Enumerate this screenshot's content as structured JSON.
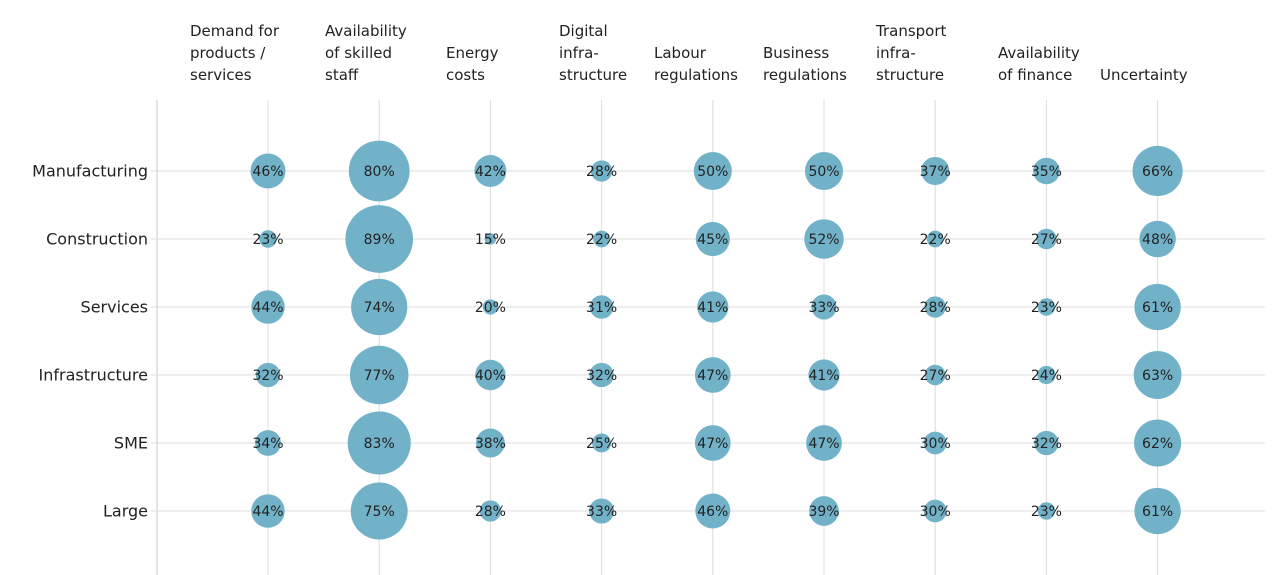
{
  "chart_data": {
    "type": "bubble",
    "categories": [
      "Demand for\nproducts /\nservices",
      "Availability\nof skilled\nstaff",
      "Energy\ncosts",
      "Digital\ninfra-\nstructure",
      "Labour\nregulations",
      "Business\nregulations",
      "Transport\ninfra-\nstructure",
      "Availability\nof finance",
      "Uncertainty"
    ],
    "color": "#72b2c9",
    "series": [
      {
        "name": "Manufacturing",
        "values": [
          46,
          80,
          42,
          28,
          50,
          50,
          37,
          35,
          66
        ],
        "value_labels": [
          "46%",
          "80%",
          "42%",
          "28%",
          "50%",
          "50%",
          "37%",
          "35%",
          "66%"
        ]
      },
      {
        "name": "Construction",
        "values": [
          23,
          89,
          15,
          22,
          45,
          52,
          22,
          27,
          48
        ],
        "value_labels": [
          "23%",
          "89%",
          "15%",
          "22%",
          "45%",
          "52%",
          "22%",
          "27%",
          "48%"
        ]
      },
      {
        "name": "Services",
        "values": [
          44,
          74,
          20,
          31,
          41,
          33,
          28,
          23,
          61
        ],
        "value_labels": [
          "44%",
          "74%",
          "20%",
          "31%",
          "41%",
          "33%",
          "28%",
          "23%",
          "61%"
        ]
      },
      {
        "name": "Infrastructure",
        "values": [
          32,
          77,
          40,
          32,
          47,
          41,
          27,
          24,
          63
        ],
        "value_labels": [
          "32%",
          "77%",
          "40%",
          "32%",
          "47%",
          "41%",
          "27%",
          "24%",
          "63%"
        ]
      },
      {
        "name": "SME",
        "values": [
          34,
          83,
          38,
          25,
          47,
          47,
          30,
          32,
          62
        ],
        "value_labels": [
          "34%",
          "83%",
          "38%",
          "25%",
          "47%",
          "47%",
          "30%",
          "32%",
          "62%"
        ]
      },
      {
        "name": "Large",
        "values": [
          44,
          75,
          28,
          33,
          46,
          39,
          30,
          23,
          61
        ],
        "value_labels": [
          "44%",
          "75%",
          "28%",
          "33%",
          "46%",
          "39%",
          "30%",
          "23%",
          "61%"
        ]
      }
    ]
  }
}
